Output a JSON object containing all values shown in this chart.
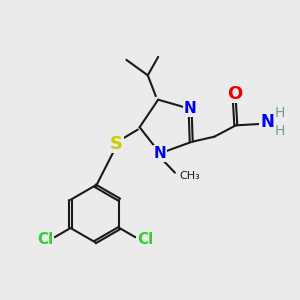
{
  "background_color": "#ebebeb",
  "bond_color": "#1a1a1a",
  "n_color": "#0000ee",
  "o_color": "#ee0000",
  "s_color": "#cccc00",
  "cl_color": "#33cc33",
  "h_color": "#7a9a9a",
  "figsize": [
    3.0,
    3.0
  ],
  "dpi": 100,
  "xlim": [
    0,
    10
  ],
  "ylim": [
    0,
    10
  ]
}
